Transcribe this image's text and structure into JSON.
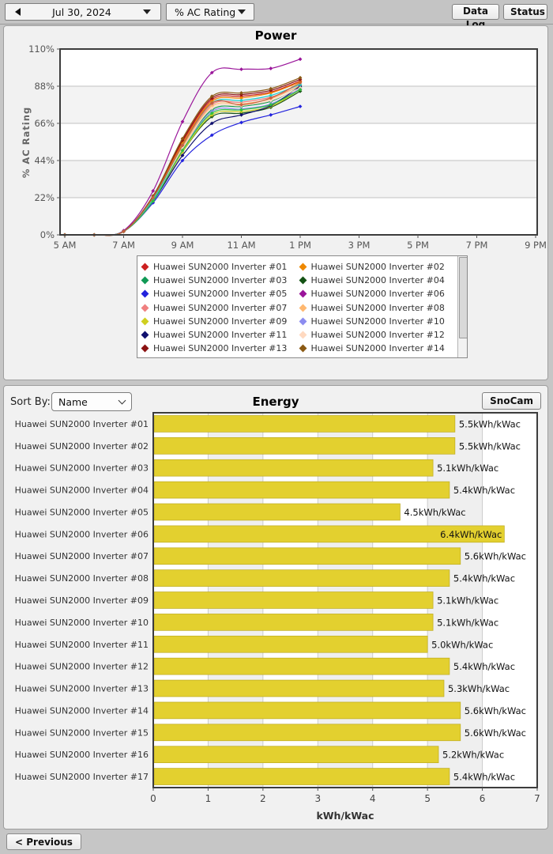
{
  "toolbar": {
    "date_label": "Jul 30, 2024",
    "metric_label": "% AC Rating",
    "data_log_label": "Data Log",
    "status_label": "Status"
  },
  "energy": {
    "sort_by_label": "Sort By:",
    "sort_selected": "Name",
    "snocam_label": "SnoCam"
  },
  "footer": {
    "previous_label": "< Previous"
  },
  "chart_data": [
    {
      "type": "line",
      "title": "Power",
      "ylabel": "% AC Rating",
      "ylim": [
        0,
        110
      ],
      "ytick_labels": [
        "0%",
        "22%",
        "44%",
        "66%",
        "88%",
        "110%"
      ],
      "xtick_labels": [
        "5 AM",
        "7 AM",
        "9 AM",
        "11 AM",
        "1 PM",
        "3 PM",
        "5 PM",
        "7 PM",
        "9 PM"
      ],
      "xtick_hours": [
        5,
        7,
        9,
        11,
        13,
        15,
        17,
        19,
        21
      ],
      "x_axis_range_hours": [
        5,
        21
      ],
      "data_hours": [
        5,
        6,
        7,
        8,
        9,
        10,
        11,
        12,
        13
      ],
      "grid": "horizontal gridlines every 22%, alternating white/light-gray bands",
      "legend_position": "below",
      "legend_visible_count": 14,
      "series": [
        {
          "name": "Huawei SUN2000 Inverter #01",
          "color": "#CC2020",
          "values": [
            0,
            0,
            2,
            22,
            55,
            80,
            82,
            84.5,
            91
          ]
        },
        {
          "name": "Huawei SUN2000 Inverter #02",
          "color": "#EE8800",
          "values": [
            0,
            0,
            2,
            22,
            54,
            79,
            81,
            84,
            90.5
          ]
        },
        {
          "name": "Huawei SUN2000 Inverter #03",
          "color": "#109955",
          "values": [
            0,
            0,
            2,
            21,
            51,
            74,
            76,
            79,
            87.5
          ]
        },
        {
          "name": "Huawei SUN2000 Inverter #04",
          "color": "#145214",
          "values": [
            0,
            0,
            2,
            20,
            49,
            70,
            72,
            75.5,
            85
          ]
        },
        {
          "name": "Huawei SUN2000 Inverter #05",
          "color": "#2222DD",
          "values": [
            0,
            0,
            2,
            19,
            44,
            59,
            66.5,
            71,
            76
          ]
        },
        {
          "name": "Huawei SUN2000 Inverter #06",
          "color": "#9A159A",
          "values": [
            0,
            0,
            2.5,
            26,
            67,
            96,
            98,
            98.5,
            104
          ]
        },
        {
          "name": "Huawei SUN2000 Inverter #07",
          "color": "#F08080",
          "values": [
            0,
            0,
            2,
            21,
            52,
            77,
            78.5,
            81.5,
            88
          ]
        },
        {
          "name": "Huawei SUN2000 Inverter #08",
          "color": "#FFB870",
          "values": [
            0,
            0,
            2,
            21,
            52,
            76,
            77.5,
            80.5,
            88.5
          ]
        },
        {
          "name": "Huawei SUN2000 Inverter #09",
          "color": "#CFCF20",
          "values": [
            0,
            0,
            2,
            20,
            49,
            71,
            73,
            76,
            86
          ]
        },
        {
          "name": "Huawei SUN2000 Inverter #10",
          "color": "#8C8CF0",
          "values": [
            0,
            0,
            2,
            20,
            50,
            73,
            74.5,
            77.5,
            86.5
          ]
        },
        {
          "name": "Huawei SUN2000 Inverter #11",
          "color": "#10106E",
          "values": [
            0,
            0,
            2,
            20,
            47,
            66,
            71,
            76.5,
            88
          ]
        },
        {
          "name": "Huawei SUN2000 Inverter #12",
          "color": "#FFD9C0",
          "values": [
            0,
            0,
            2,
            21,
            51,
            75,
            76.5,
            79.5,
            87
          ]
        },
        {
          "name": "Huawei SUN2000 Inverter #13",
          "color": "#8B1212",
          "values": [
            0,
            0,
            2,
            23,
            56,
            81,
            83,
            85.5,
            92
          ]
        },
        {
          "name": "Huawei SUN2000 Inverter #14",
          "color": "#8B5A14",
          "values": [
            0,
            0,
            2,
            23,
            57,
            82,
            84,
            86.5,
            93
          ]
        },
        {
          "name": "Huawei SUN2000 Inverter #15",
          "color": "#20CFCF",
          "values": [
            0,
            0,
            2,
            21,
            53,
            78,
            79.5,
            82.5,
            89
          ]
        },
        {
          "name": "Huawei SUN2000 Inverter #16",
          "color": "#30C040",
          "values": [
            0,
            0,
            2,
            20,
            50,
            72,
            74,
            77,
            86
          ]
        },
        {
          "name": "Huawei SUN2000 Inverter #17",
          "color": "#C86040",
          "values": [
            0,
            0,
            2,
            22,
            53,
            78,
            77,
            81,
            90
          ]
        }
      ]
    },
    {
      "type": "bar",
      "title": "Energy",
      "orientation": "horizontal",
      "xlabel": "kWh/kWac",
      "xlim": [
        0,
        7
      ],
      "xtick_labels": [
        "0",
        "1",
        "2",
        "3",
        "4",
        "5",
        "6",
        "7"
      ],
      "grid": "vertical gridlines every 1 unit, alternating white/light-gray bands",
      "bar_color": "#E3D02F",
      "categories": [
        "Huawei SUN2000 Inverter #01",
        "Huawei SUN2000 Inverter #02",
        "Huawei SUN2000 Inverter #03",
        "Huawei SUN2000 Inverter #04",
        "Huawei SUN2000 Inverter #05",
        "Huawei SUN2000 Inverter #06",
        "Huawei SUN2000 Inverter #07",
        "Huawei SUN2000 Inverter #08",
        "Huawei SUN2000 Inverter #09",
        "Huawei SUN2000 Inverter #10",
        "Huawei SUN2000 Inverter #11",
        "Huawei SUN2000 Inverter #12",
        "Huawei SUN2000 Inverter #13",
        "Huawei SUN2000 Inverter #14",
        "Huawei SUN2000 Inverter #15",
        "Huawei SUN2000 Inverter #16",
        "Huawei SUN2000 Inverter #17"
      ],
      "values": [
        5.5,
        5.5,
        5.1,
        5.4,
        4.5,
        6.4,
        5.6,
        5.4,
        5.1,
        5.1,
        5.0,
        5.4,
        5.3,
        5.6,
        5.6,
        5.2,
        5.4
      ],
      "value_labels": [
        "5.5kWh/kWac",
        "5.5kWh/kWac",
        "5.1kWh/kWac",
        "5.4kWh/kWac",
        "4.5kWh/kWac",
        "6.4kWh/kWac",
        "5.6kWh/kWac",
        "5.4kWh/kWac",
        "5.1kWh/kWac",
        "5.1kWh/kWac",
        "5.0kWh/kWac",
        "5.4kWh/kWac",
        "5.3kWh/kWac",
        "5.6kWh/kWac",
        "5.6kWh/kWac",
        "5.2kWh/kWac",
        "5.4kWh/kWac"
      ]
    }
  ]
}
